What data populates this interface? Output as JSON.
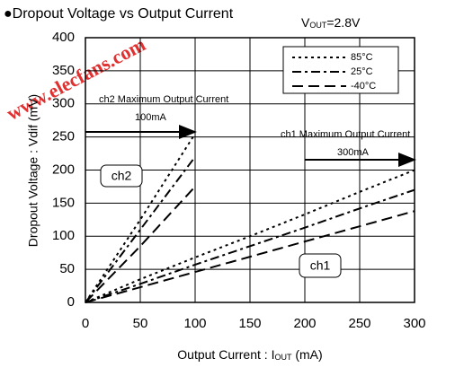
{
  "chart_data": {
    "type": "line",
    "title": "●Dropout Voltage vs Output Current",
    "watermark": "www.elecfans.com",
    "vout_label": [
      "V",
      "OUT",
      "=2.8V"
    ],
    "x_label": [
      "Output Current : I",
      "OUT",
      " (mA)"
    ],
    "y_label": "Dropout Voltage : Vdif (mV)",
    "xlim": [
      0,
      300
    ],
    "xticks": [
      0,
      50,
      100,
      150,
      200,
      250,
      300
    ],
    "ylim": [
      0,
      400
    ],
    "yticks": [
      0,
      50,
      100,
      150,
      200,
      250,
      300,
      350,
      400
    ],
    "grid": true,
    "ch2_x": [
      0,
      50,
      100
    ],
    "ch1_x": [
      0,
      50,
      100,
      150,
      200,
      250,
      300
    ],
    "series": [
      {
        "name": "85°C",
        "dash": "3,4",
        "width": 2,
        "ch2_values": [
          0,
          125,
          255
        ],
        "ch1_values": [
          0,
          35,
          68,
          100,
          133,
          167,
          200
        ]
      },
      {
        "name": "25°C",
        "dash": "10,4,3,4",
        "width": 2,
        "ch2_values": [
          0,
          110,
          220
        ],
        "ch1_values": [
          0,
          28,
          57,
          85,
          113,
          142,
          170
        ]
      },
      {
        "name": "-40°C",
        "dash": "12,6",
        "width": 2,
        "ch2_values": [
          0,
          85,
          175
        ],
        "ch1_values": [
          0,
          23,
          46,
          69,
          92,
          115,
          138
        ]
      }
    ],
    "annotations": {
      "ch2_note": "ch2 Maximum Output Current",
      "ch2_max": "100mA",
      "ch1_note": "ch1 Maximum Output Current",
      "ch1_max": "300mA",
      "ch2_box": "ch2",
      "ch1_box": "ch1"
    }
  }
}
